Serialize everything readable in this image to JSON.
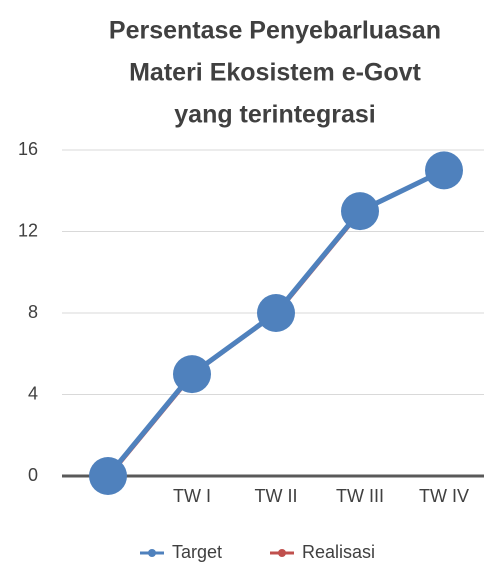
{
  "chart_data": {
    "type": "line",
    "title": [
      "Persentase Penyebarluasan",
      "Materi Ekosistem e-Govt",
      "yang terintegrasi"
    ],
    "categories": [
      null,
      "TW I",
      "TW II",
      "TW III",
      "TW IV"
    ],
    "series": [
      {
        "name": "Realisasi",
        "color": "#c0504d",
        "values": [
          0,
          5,
          8,
          13,
          15
        ]
      },
      {
        "name": "Target",
        "color": "#4f81bd",
        "values": [
          0,
          5,
          8,
          13,
          15
        ]
      }
    ],
    "ylim": [
      0,
      16
    ],
    "yticks": [
      0,
      4,
      8,
      12,
      16
    ],
    "grid": true,
    "legend": "bottom"
  }
}
